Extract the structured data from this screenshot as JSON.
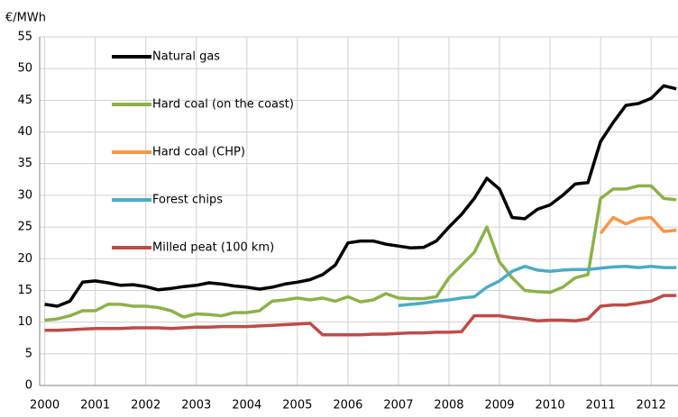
{
  "chart_data": {
    "type": "line",
    "y_axis_label": "€/MWh",
    "x": [
      2000,
      2000.25,
      2000.5,
      2000.75,
      2001,
      2001.25,
      2001.5,
      2001.75,
      2002,
      2002.25,
      2002.5,
      2002.75,
      2003,
      2003.25,
      2003.5,
      2003.75,
      2004,
      2004.25,
      2004.5,
      2004.75,
      2005,
      2005.25,
      2005.5,
      2005.75,
      2006,
      2006.25,
      2006.5,
      2006.75,
      2007,
      2007.25,
      2007.5,
      2007.75,
      2008,
      2008.25,
      2008.5,
      2008.75,
      2009,
      2009.25,
      2009.5,
      2009.75,
      2010,
      2010.25,
      2010.5,
      2010.75,
      2011,
      2011.25,
      2011.5,
      2011.75,
      2012,
      2012.25,
      2012.5
    ],
    "series": [
      {
        "name": "Natural gas",
        "color": "#000000",
        "values": [
          12.8,
          12.5,
          13.3,
          16.3,
          16.5,
          16.2,
          15.8,
          15.9,
          15.6,
          15.1,
          15.3,
          15.6,
          15.8,
          16.2,
          16.0,
          15.7,
          15.5,
          15.2,
          15.5,
          16.0,
          16.3,
          16.7,
          17.5,
          19.0,
          22.5,
          22.8,
          22.8,
          22.3,
          22.0,
          21.7,
          21.8,
          22.8,
          25.0,
          27.0,
          29.5,
          32.7,
          31.0,
          26.5,
          26.3,
          27.8,
          28.5,
          30.0,
          31.8,
          32.0,
          38.5,
          41.5,
          44.2,
          44.5,
          45.3,
          47.3,
          46.8
        ]
      },
      {
        "name": "Hard coal (on the coast)",
        "color": "#8db14a",
        "values": [
          10.3,
          10.5,
          11.0,
          11.8,
          11.8,
          12.8,
          12.8,
          12.5,
          12.5,
          12.3,
          11.8,
          10.8,
          11.3,
          11.2,
          11.0,
          11.5,
          11.5,
          11.8,
          13.3,
          13.5,
          13.8,
          13.5,
          13.8,
          13.3,
          14.0,
          13.2,
          13.5,
          14.5,
          13.8,
          13.7,
          13.7,
          14.0,
          17.0,
          19.0,
          21.0,
          25.0,
          19.5,
          17.0,
          15.0,
          14.8,
          14.7,
          15.5,
          17.0,
          17.5,
          29.5,
          31.0,
          31.0,
          31.5,
          31.5,
          29.5,
          29.3
        ]
      },
      {
        "name": "Hard coal (CHP)",
        "color": "#f79646",
        "values": [
          null,
          null,
          null,
          null,
          null,
          null,
          null,
          null,
          null,
          null,
          null,
          null,
          null,
          null,
          null,
          null,
          null,
          null,
          null,
          null,
          null,
          null,
          null,
          null,
          null,
          null,
          null,
          null,
          null,
          null,
          null,
          null,
          null,
          null,
          null,
          null,
          null,
          null,
          null,
          null,
          null,
          null,
          null,
          null,
          24.0,
          26.5,
          25.5,
          26.3,
          26.5,
          24.3,
          24.5
        ]
      },
      {
        "name": "Forest chips",
        "color": "#4bacc6",
        "values": [
          null,
          null,
          null,
          null,
          null,
          null,
          null,
          null,
          null,
          null,
          null,
          null,
          null,
          null,
          null,
          null,
          null,
          null,
          null,
          null,
          null,
          null,
          null,
          null,
          null,
          null,
          null,
          null,
          12.6,
          12.8,
          13.0,
          13.3,
          13.5,
          13.8,
          14.0,
          15.5,
          16.5,
          18.0,
          18.8,
          18.2,
          18.0,
          18.2,
          18.3,
          18.3,
          18.5,
          18.7,
          18.8,
          18.6,
          18.8,
          18.6,
          18.6
        ]
      },
      {
        "name": "Milled peat (100 km)",
        "color": "#be4b48",
        "values": [
          8.7,
          8.7,
          8.8,
          8.9,
          9.0,
          9.0,
          9.0,
          9.1,
          9.1,
          9.1,
          9.0,
          9.1,
          9.2,
          9.2,
          9.3,
          9.3,
          9.3,
          9.4,
          9.5,
          9.6,
          9.7,
          9.8,
          8.0,
          8.0,
          8.0,
          8.0,
          8.1,
          8.1,
          8.2,
          8.3,
          8.3,
          8.4,
          8.4,
          8.5,
          11.0,
          11.0,
          11.0,
          10.7,
          10.5,
          10.2,
          10.3,
          10.3,
          10.2,
          10.5,
          12.5,
          12.7,
          12.7,
          13.0,
          13.3,
          14.2,
          14.2
        ]
      }
    ],
    "xlim": [
      1999.9,
      2012.55
    ],
    "xticks": [
      2000,
      2001,
      2002,
      2003,
      2004,
      2005,
      2006,
      2007,
      2008,
      2009,
      2010,
      2011,
      2012
    ],
    "ylim": [
      0,
      55
    ],
    "yticks": [
      0,
      5,
      10,
      15,
      20,
      25,
      30,
      35,
      40,
      45,
      50,
      55
    ],
    "grid": true,
    "legend": "upper left"
  }
}
